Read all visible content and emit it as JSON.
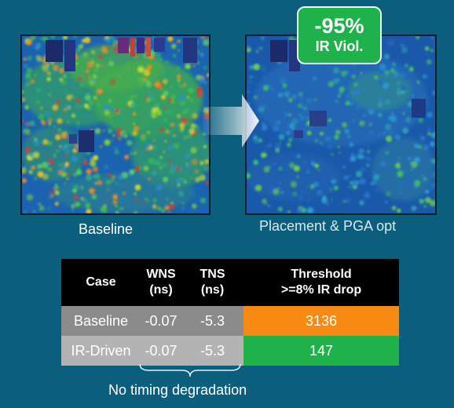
{
  "badge": {
    "percent": "-95%",
    "label": "IR Viol."
  },
  "captions": {
    "baseline": "Baseline",
    "optimized": "Placement & PGA opt"
  },
  "table": {
    "headers": {
      "case": "Case",
      "wns_line1": "WNS",
      "wns_line2": "(ns)",
      "tns_line1": "TNS",
      "tns_line2": "(ns)",
      "threshold_line1": "Threshold",
      "threshold_line2": ">=8% IR drop"
    },
    "rows": [
      {
        "case": "Baseline",
        "wns": "-0.07",
        "tns": "-5.3",
        "threshold": "3136"
      },
      {
        "case": "IR-Driven",
        "wns": "-0.07",
        "tns": "-5.3",
        "threshold": "147"
      }
    ]
  },
  "footnote": "No timing degradation",
  "colors": {
    "background": "#0c5f7c",
    "badge": "#1fb24a",
    "baseline_cell": "#f78a12",
    "optimized_cell": "#1fb24a"
  }
}
